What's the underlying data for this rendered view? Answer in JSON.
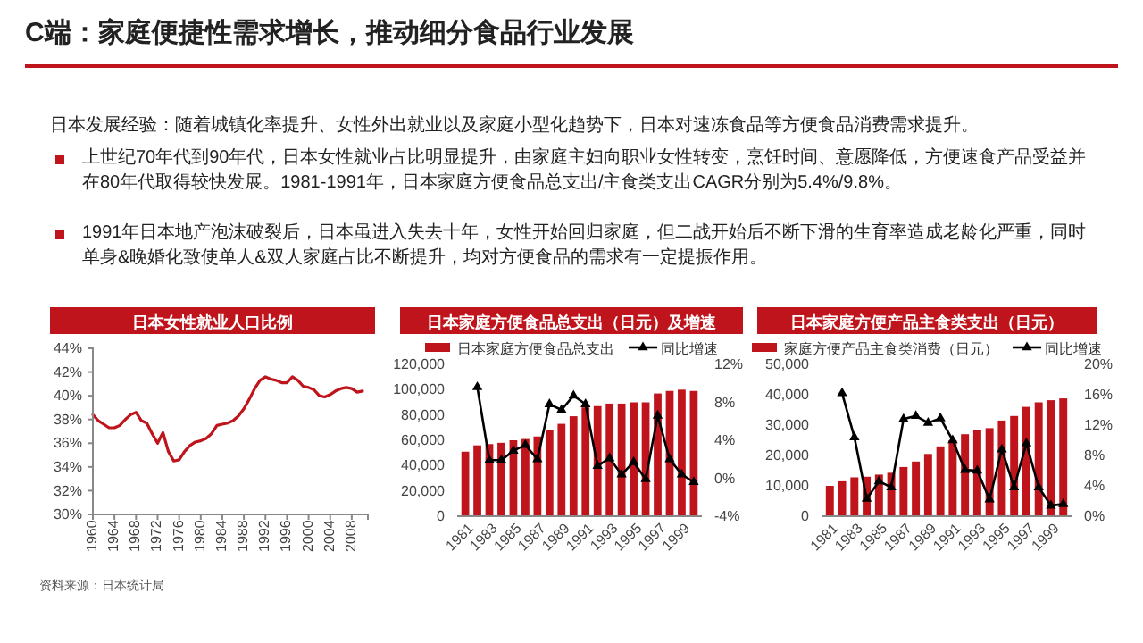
{
  "chart_data": [
    {
      "type": "other",
      "title": "C端：家庭便捷性需求增长，推动细分食品行业发展",
      "annotations": [
        "日本发展经验：随着城镇化率提升、女性外出就业以及家庭小型化趋势下，日本对速冻食品等方便食品消费需求提升。",
        "上世纪70年代到90年代，日本女性就业占比明显提升，由家庭主妇向职业女性转变，烹饪时间、意愿降低，方便速食产品受益并在80年代取得较快发展。1981-1991年，日本家庭方便食品总支出/主食类支出CAGR分别为5.4%/9.8%。",
        "1991年日本地产泡沫破裂后，日本虽进入失去十年，女性开始回归家庭，但二战开始后不断下滑的生育率造成老龄化严重，同时单身&晚婚化致使单人&双人家庭占比不断提升，均对方便食品的需求有一定提振作用。"
      ]
    },
    {
      "type": "line",
      "title": "日本女性就业人口比例",
      "color": "#c0141c",
      "annotations": [
        "资料来源：日本统计局"
      ],
      "x": [
        1960,
        1961,
        1962,
        1963,
        1964,
        1965,
        1966,
        1967,
        1968,
        1969,
        1970,
        1971,
        1972,
        1973,
        1974,
        1975,
        1976,
        1977,
        1978,
        1979,
        1980,
        1981,
        1982,
        1983,
        1984,
        1985,
        1986,
        1987,
        1988,
        1989,
        1990,
        1991,
        1992,
        1993,
        1994,
        1995,
        1996,
        1997,
        1998,
        1999,
        2000,
        2001,
        2002,
        2003,
        2004,
        2005,
        2006,
        2007,
        2008,
        2009,
        2010
      ],
      "values": [
        38.4,
        37.9,
        37.6,
        37.3,
        37.3,
        37.5,
        38.0,
        38.4,
        38.6,
        37.9,
        37.7,
        36.8,
        36.0,
        36.9,
        35.3,
        34.5,
        34.6,
        35.3,
        35.8,
        36.1,
        36.2,
        36.4,
        36.8,
        37.5,
        37.6,
        37.7,
        37.9,
        38.3,
        38.9,
        39.7,
        40.6,
        41.3,
        41.6,
        41.4,
        41.3,
        41.1,
        41.1,
        41.6,
        41.3,
        40.8,
        40.7,
        40.5,
        40.0,
        39.9,
        40.1,
        40.4,
        40.6,
        40.7,
        40.6,
        40.3,
        40.4
      ],
      "xlim": [
        1960,
        2011
      ],
      "xticks": [
        1960,
        1964,
        1968,
        1972,
        1976,
        1980,
        1984,
        1988,
        1992,
        1996,
        2000,
        2004,
        2008
      ],
      "ylim": [
        30,
        44
      ],
      "yticks": [
        {
          "value": 30,
          "label": "30%"
        },
        {
          "value": 32,
          "label": "32%"
        },
        {
          "value": 34,
          "label": "34%"
        },
        {
          "value": 36,
          "label": "36%"
        },
        {
          "value": 38,
          "label": "38%"
        },
        {
          "value": 40,
          "label": "40%"
        },
        {
          "value": 42,
          "label": "42%"
        },
        {
          "value": 44,
          "label": "44%"
        }
      ]
    },
    {
      "type": "bar",
      "title": "日本家庭方便食品总支出（日元）及增速",
      "legend": "top",
      "marker": "triangle",
      "categories": [
        "1981",
        null,
        "1983",
        null,
        "1985",
        null,
        "1987",
        null,
        "1989",
        null,
        "1991",
        null,
        "1993",
        null,
        "1995",
        null,
        "1997",
        null,
        "1999",
        null
      ],
      "series": [
        {
          "name": "日本家庭方便食品总支出",
          "type": "bar",
          "color": "#c0141c",
          "values": [
            51000,
            56000,
            57000,
            58000,
            60000,
            61000,
            63000,
            68000,
            73000,
            79000,
            86000,
            87000,
            89000,
            89000,
            90000,
            90000,
            97000,
            99000,
            100000,
            99000
          ]
        },
        {
          "name": "同比增速",
          "type": "line",
          "axis": "y2",
          "color": "#000000",
          "values": [
            null,
            9.6,
            1.9,
            1.9,
            2.9,
            3.5,
            2.0,
            7.8,
            7.2,
            8.7,
            7.8,
            1.3,
            2.1,
            0.4,
            1.7,
            -0.1,
            6.6,
            2.0,
            0.4,
            -0.4
          ]
        }
      ],
      "ylim": [
        0,
        120000
      ],
      "yticks": [
        0,
        {
          "value": 20000,
          "label": "20,000"
        },
        {
          "value": 40000,
          "label": "40,000"
        },
        {
          "value": 60000,
          "label": "60,000"
        },
        {
          "value": 80000,
          "label": "80,000"
        },
        {
          "value": 100000,
          "label": "100,000"
        },
        {
          "value": 120000,
          "label": "120,000"
        }
      ],
      "y2lim": [
        -4,
        12
      ],
      "y2ticks": [
        {
          "value": -4,
          "label": "-4%"
        },
        {
          "value": 0,
          "label": "0%"
        },
        {
          "value": 4,
          "label": "4%"
        },
        {
          "value": 8,
          "label": "8%"
        },
        {
          "value": 12,
          "label": "12%"
        }
      ]
    },
    {
      "type": "bar",
      "title": "日本家庭方便产品主食类支出（日元）",
      "legend": "top",
      "marker": "triangle",
      "categories": [
        "1981",
        null,
        "1983",
        null,
        "1985",
        null,
        "1987",
        null,
        "1989",
        null,
        "1991",
        null,
        "1993",
        null,
        "1995",
        null,
        "1997",
        null,
        "1999",
        null
      ],
      "series": [
        {
          "name": "家庭方便产品主食类消费（日元）",
          "type": "bar",
          "color": "#c0141c",
          "values": [
            10000,
            11500,
            12800,
            13000,
            13700,
            14300,
            16200,
            18000,
            20500,
            23000,
            25000,
            27000,
            28300,
            29000,
            31500,
            33000,
            36000,
            37500,
            38200,
            38800
          ]
        },
        {
          "name": "同比增速",
          "type": "line",
          "axis": "y2",
          "color": "#000000",
          "values": [
            null,
            16.2,
            10.4,
            2.3,
            4.6,
            3.8,
            12.8,
            13.2,
            12.3,
            12.9,
            10.0,
            6.1,
            6.0,
            2.2,
            8.8,
            3.8,
            9.6,
            3.8,
            1.4,
            1.6
          ]
        }
      ],
      "ylim": [
        0,
        50000
      ],
      "yticks": [
        0,
        {
          "value": 10000,
          "label": "10,000"
        },
        {
          "value": 20000,
          "label": "20,000"
        },
        {
          "value": 30000,
          "label": "30,000"
        },
        {
          "value": 40000,
          "label": "40,000"
        },
        {
          "value": 50000,
          "label": "50,000"
        }
      ],
      "y2lim": [
        0,
        20
      ],
      "y2ticks": [
        {
          "value": 0,
          "label": "0%"
        },
        {
          "value": 4,
          "label": "4%"
        },
        {
          "value": 8,
          "label": "8%"
        },
        {
          "value": 12,
          "label": "12%"
        },
        {
          "value": 16,
          "label": "16%"
        },
        {
          "value": 20,
          "label": "20%"
        }
      ]
    }
  ]
}
